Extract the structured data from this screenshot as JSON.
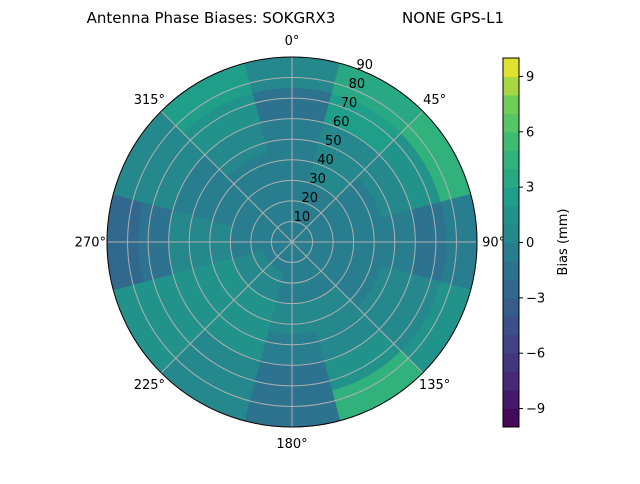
{
  "chart_data": {
    "type": "heatmap",
    "subtype": "polar-contour",
    "title_left": "Antenna Phase Biases: SOKGRX3",
    "title_right": "NONE GPS-L1",
    "angular_ticks": [
      "0°",
      "45°",
      "90°",
      "135°",
      "180°",
      "225°",
      "270°",
      "315°"
    ],
    "angular_tick_values": [
      0,
      45,
      90,
      135,
      180,
      225,
      270,
      315
    ],
    "angular_direction": "clockwise",
    "angular_zero": "top",
    "radial_ticks": [
      "10",
      "20",
      "30",
      "40",
      "50",
      "60",
      "70",
      "80",
      "90"
    ],
    "radial_tick_values": [
      10,
      20,
      30,
      40,
      50,
      60,
      70,
      80,
      90
    ],
    "rlim": [
      0,
      90
    ],
    "grid": true,
    "colormap": "viridis",
    "colorbar": {
      "label": "Bias (mm)",
      "range": [
        -10,
        10
      ],
      "level_step": 1,
      "ticks": [
        "−9",
        "−6",
        "−3",
        "0",
        "3",
        "6",
        "9"
      ],
      "tick_values": [
        -9,
        -6,
        -3,
        0,
        3,
        6,
        9
      ]
    },
    "azimuth_bins": [
      0,
      30,
      60,
      90,
      120,
      150,
      180,
      210,
      240,
      270,
      300,
      330
    ],
    "zenith_bins": [
      0,
      15,
      30,
      45,
      60,
      75,
      90
    ],
    "values": [
      [
        -0.5,
        -0.5,
        -0.5,
        -0.5,
        -0.5,
        -0.5,
        -0.5,
        -0.5,
        -0.5,
        -0.5,
        -0.5,
        -0.5
      ],
      [
        -0.5,
        -0.5,
        -1,
        -1,
        -0.5,
        -0.5,
        -0.5,
        0.5,
        0.5,
        -0.5,
        -0.5,
        -1
      ],
      [
        -0.5,
        0,
        -1,
        -1,
        -0.5,
        0,
        0,
        1,
        1.5,
        0,
        -0.5,
        -0.5
      ],
      [
        -1,
        0.5,
        0,
        -1,
        0,
        0,
        -0.5,
        1,
        1.5,
        0,
        -0.5,
        0.5
      ],
      [
        -1.5,
        2,
        1.5,
        -1.5,
        0.5,
        1.5,
        -1.5,
        0.5,
        1,
        -2,
        0.5,
        1.5
      ],
      [
        0.5,
        3.5,
        4.5,
        -0.5,
        1,
        4,
        -1.5,
        0,
        1.5,
        -3,
        0.5,
        2
      ]
    ]
  }
}
